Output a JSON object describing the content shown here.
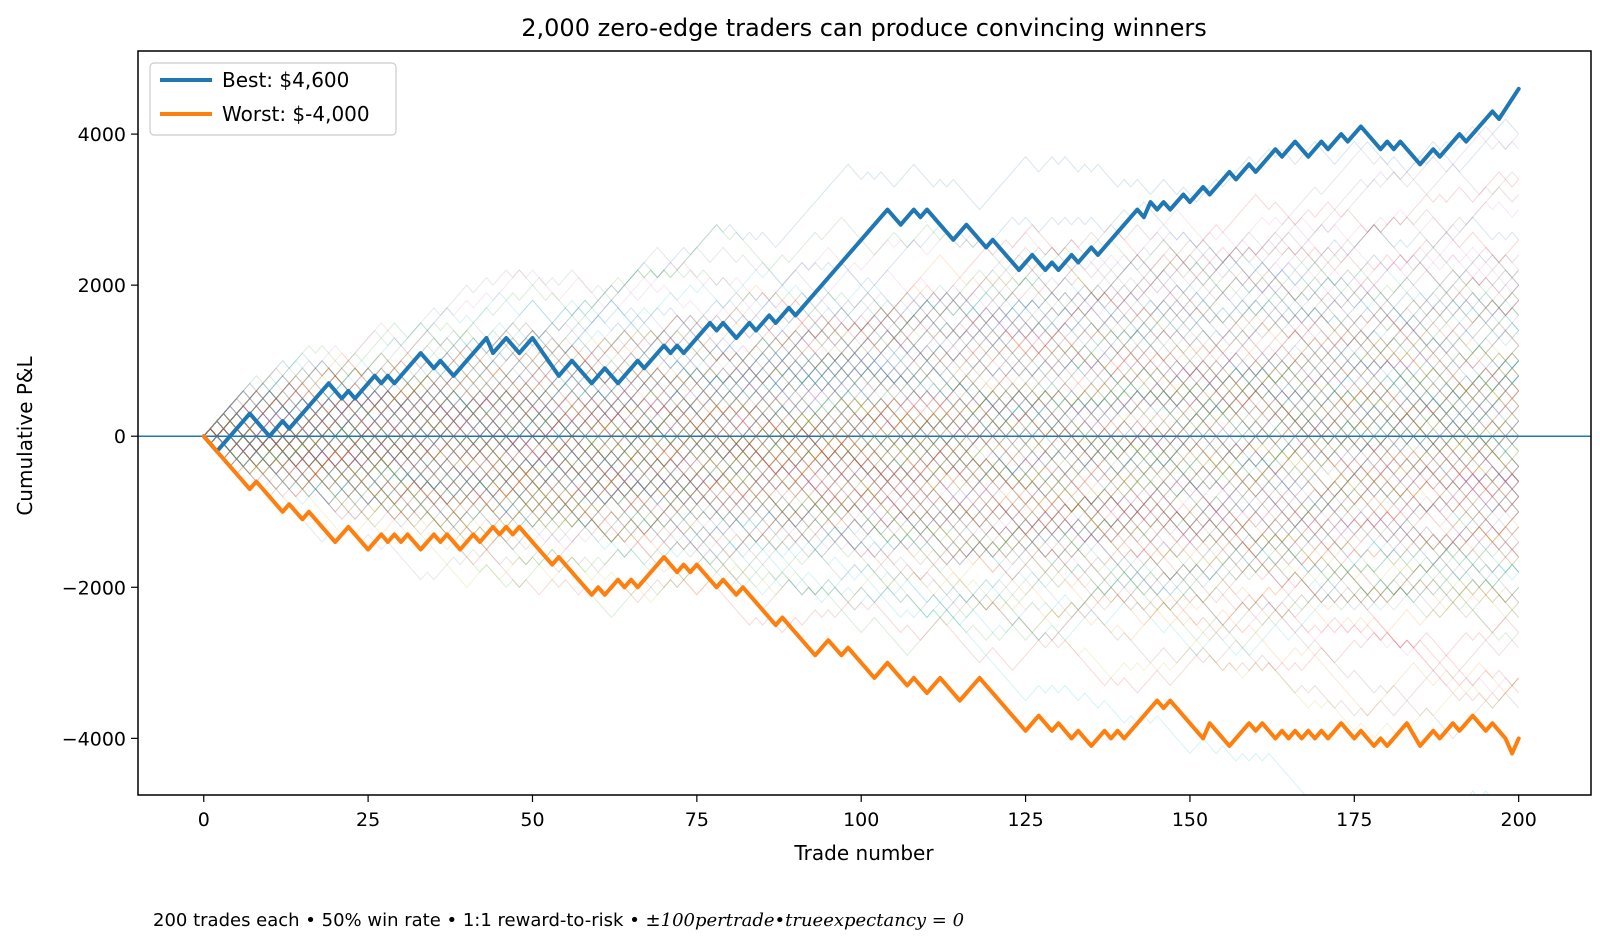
{
  "chart_data": {
    "type": "line",
    "title": "2,000 zero-edge traders can produce convincing winners",
    "xlabel": "Trade number",
    "ylabel": "Cumulative P&L",
    "xlim": [
      -10,
      211
    ],
    "ylim": [
      -4750,
      5100
    ],
    "xticks": [
      0,
      25,
      50,
      75,
      100,
      125,
      150,
      175,
      200
    ],
    "yticks": [
      -4000,
      -2000,
      0,
      2000,
      4000
    ],
    "ytick_labels": [
      "−4000",
      "−2000",
      "0",
      "2000",
      "4000"
    ],
    "grid": false,
    "legend_position": "top-left",
    "reference_line_y": 0,
    "background_paths": {
      "count_drawn": 200,
      "description_visible": false,
      "alpha": 0.18,
      "colors": [
        "#1f77b4",
        "#ff7f0e",
        "#2ca02c",
        "#d62728",
        "#9467bd",
        "#8c564b",
        "#e377c2",
        "#7f7f7f",
        "#bcbd22",
        "#17becf"
      ]
    },
    "series": [
      {
        "name": "Best: $4,600",
        "color": "#1f77b4",
        "points": [
          [
            0,
            0
          ],
          [
            2,
            -200
          ],
          [
            7,
            300
          ],
          [
            10,
            0
          ],
          [
            12,
            200
          ],
          [
            13,
            100
          ],
          [
            19,
            700
          ],
          [
            21,
            500
          ],
          [
            22,
            600
          ],
          [
            23,
            500
          ],
          [
            26,
            800
          ],
          [
            27,
            700
          ],
          [
            28,
            800
          ],
          [
            29,
            700
          ],
          [
            33,
            1100
          ],
          [
            35,
            900
          ],
          [
            36,
            1000
          ],
          [
            38,
            800
          ],
          [
            43,
            1300
          ],
          [
            44,
            1100
          ],
          [
            45,
            1200
          ],
          [
            46,
            1300
          ],
          [
            48,
            1100
          ],
          [
            50,
            1300
          ],
          [
            54,
            800
          ],
          [
            56,
            1000
          ],
          [
            59,
            700
          ],
          [
            61,
            900
          ],
          [
            63,
            700
          ],
          [
            66,
            1000
          ],
          [
            67,
            900
          ],
          [
            70,
            1200
          ],
          [
            71,
            1100
          ],
          [
            72,
            1200
          ],
          [
            73,
            1100
          ],
          [
            77,
            1500
          ],
          [
            78,
            1400
          ],
          [
            79,
            1500
          ],
          [
            81,
            1300
          ],
          [
            83,
            1500
          ],
          [
            84,
            1400
          ],
          [
            86,
            1600
          ],
          [
            87,
            1500
          ],
          [
            89,
            1700
          ],
          [
            90,
            1600
          ],
          [
            104,
            3000
          ],
          [
            106,
            2800
          ],
          [
            108,
            3000
          ],
          [
            109,
            2900
          ],
          [
            110,
            3000
          ],
          [
            114,
            2600
          ],
          [
            116,
            2800
          ],
          [
            119,
            2500
          ],
          [
            120,
            2600
          ],
          [
            124,
            2200
          ],
          [
            126,
            2400
          ],
          [
            128,
            2200
          ],
          [
            129,
            2300
          ],
          [
            130,
            2200
          ],
          [
            132,
            2400
          ],
          [
            133,
            2300
          ],
          [
            135,
            2500
          ],
          [
            136,
            2400
          ],
          [
            142,
            3000
          ],
          [
            143,
            2900
          ],
          [
            144,
            3100
          ],
          [
            145,
            3000
          ],
          [
            146,
            3100
          ],
          [
            147,
            3000
          ],
          [
            149,
            3200
          ],
          [
            150,
            3100
          ],
          [
            152,
            3300
          ],
          [
            153,
            3200
          ],
          [
            156,
            3500
          ],
          [
            157,
            3400
          ],
          [
            159,
            3600
          ],
          [
            160,
            3500
          ],
          [
            163,
            3800
          ],
          [
            164,
            3700
          ],
          [
            166,
            3900
          ],
          [
            168,
            3700
          ],
          [
            170,
            3900
          ],
          [
            171,
            3800
          ],
          [
            173,
            4000
          ],
          [
            174,
            3900
          ],
          [
            176,
            4100
          ],
          [
            179,
            3800
          ],
          [
            180,
            3900
          ],
          [
            181,
            3800
          ],
          [
            182,
            3900
          ],
          [
            185,
            3600
          ],
          [
            187,
            3800
          ],
          [
            188,
            3700
          ],
          [
            191,
            4000
          ],
          [
            192,
            3900
          ],
          [
            196,
            4300
          ],
          [
            197,
            4200
          ],
          [
            200,
            4600
          ]
        ]
      },
      {
        "name": "Worst: $-4,000",
        "color": "#ff7f0e",
        "points": [
          [
            0,
            0
          ],
          [
            7,
            -700
          ],
          [
            8,
            -600
          ],
          [
            12,
            -1000
          ],
          [
            13,
            -900
          ],
          [
            15,
            -1100
          ],
          [
            16,
            -1000
          ],
          [
            20,
            -1400
          ],
          [
            22,
            -1200
          ],
          [
            25,
            -1500
          ],
          [
            27,
            -1300
          ],
          [
            28,
            -1400
          ],
          [
            29,
            -1300
          ],
          [
            30,
            -1400
          ],
          [
            31,
            -1300
          ],
          [
            33,
            -1500
          ],
          [
            35,
            -1300
          ],
          [
            36,
            -1400
          ],
          [
            37,
            -1300
          ],
          [
            39,
            -1500
          ],
          [
            41,
            -1300
          ],
          [
            42,
            -1400
          ],
          [
            44,
            -1200
          ],
          [
            45,
            -1300
          ],
          [
            46,
            -1200
          ],
          [
            47,
            -1300
          ],
          [
            48,
            -1200
          ],
          [
            53,
            -1700
          ],
          [
            54,
            -1600
          ],
          [
            59,
            -2100
          ],
          [
            60,
            -2000
          ],
          [
            61,
            -2100
          ],
          [
            63,
            -1900
          ],
          [
            64,
            -2000
          ],
          [
            65,
            -1900
          ],
          [
            66,
            -2000
          ],
          [
            70,
            -1600
          ],
          [
            72,
            -1800
          ],
          [
            73,
            -1700
          ],
          [
            74,
            -1800
          ],
          [
            75,
            -1700
          ],
          [
            78,
            -2000
          ],
          [
            79,
            -1900
          ],
          [
            81,
            -2100
          ],
          [
            82,
            -2000
          ],
          [
            87,
            -2500
          ],
          [
            88,
            -2400
          ],
          [
            93,
            -2900
          ],
          [
            95,
            -2700
          ],
          [
            97,
            -2900
          ],
          [
            98,
            -2800
          ],
          [
            102,
            -3200
          ],
          [
            104,
            -3000
          ],
          [
            107,
            -3300
          ],
          [
            108,
            -3200
          ],
          [
            110,
            -3400
          ],
          [
            112,
            -3200
          ],
          [
            115,
            -3500
          ],
          [
            118,
            -3200
          ],
          [
            125,
            -3900
          ],
          [
            127,
            -3700
          ],
          [
            129,
            -3900
          ],
          [
            130,
            -3800
          ],
          [
            132,
            -4000
          ],
          [
            133,
            -3900
          ],
          [
            135,
            -4100
          ],
          [
            137,
            -3900
          ],
          [
            138,
            -4000
          ],
          [
            139,
            -3900
          ],
          [
            140,
            -4000
          ],
          [
            145,
            -3500
          ],
          [
            146,
            -3600
          ],
          [
            147,
            -3500
          ],
          [
            152,
            -4000
          ],
          [
            153,
            -3800
          ],
          [
            156,
            -4100
          ],
          [
            159,
            -3800
          ],
          [
            160,
            -3900
          ],
          [
            161,
            -3800
          ],
          [
            163,
            -4000
          ],
          [
            164,
            -3900
          ],
          [
            165,
            -4000
          ],
          [
            166,
            -3900
          ],
          [
            167,
            -4000
          ],
          [
            168,
            -3900
          ],
          [
            169,
            -4000
          ],
          [
            170,
            -3900
          ],
          [
            171,
            -4000
          ],
          [
            173,
            -3800
          ],
          [
            175,
            -4000
          ],
          [
            176,
            -3900
          ],
          [
            178,
            -4100
          ],
          [
            179,
            -4000
          ],
          [
            180,
            -4100
          ],
          [
            183,
            -3800
          ],
          [
            185,
            -4100
          ],
          [
            187,
            -3900
          ],
          [
            188,
            -4000
          ],
          [
            190,
            -3800
          ],
          [
            191,
            -3900
          ],
          [
            193,
            -3700
          ],
          [
            195,
            -3900
          ],
          [
            196,
            -3800
          ],
          [
            198,
            -4000
          ],
          [
            199,
            -4200
          ],
          [
            200,
            -4000
          ]
        ]
      }
    ],
    "annotation": {
      "text_plain": "200 trades each • 50% win rate • 1:1 reward-to-risk • ±",
      "text_math": "100pertrade•trueexpectancy = 0"
    }
  }
}
